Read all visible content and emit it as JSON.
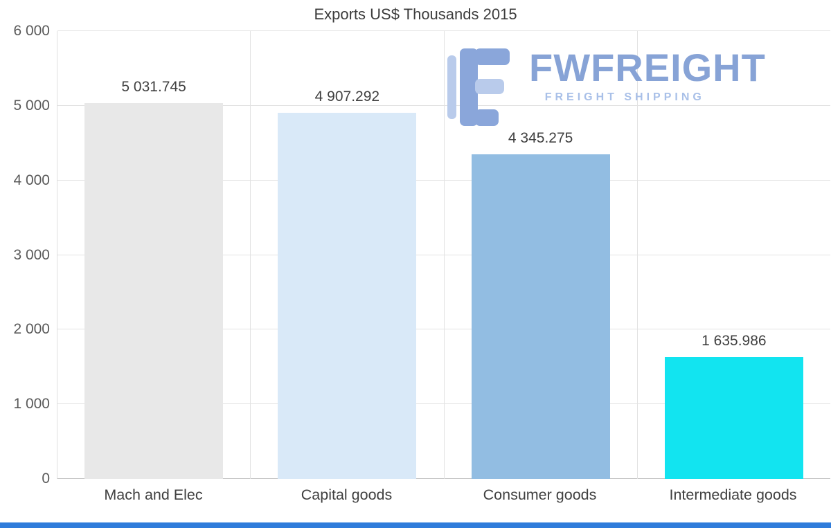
{
  "title": "Exports US$ Thousands 2015",
  "watermark": {
    "brand": "FWFREIGHT",
    "subtitle": "FREIGHT SHIPPING",
    "brand_color": "#87a3d6",
    "subtitle_color": "#a9c0e8",
    "logo_dark": "#8aa6da",
    "logo_light": "#b9cbeb"
  },
  "footer": {
    "color": "#2f7cdb"
  },
  "chart_data": {
    "type": "bar",
    "title": "Exports US$ Thousands 2015",
    "categories": [
      "Mach and Elec",
      "Capital goods",
      "Consumer goods",
      "Intermediate goods"
    ],
    "values": [
      5031.745,
      4907.292,
      4345.275,
      1635.986
    ],
    "value_labels": [
      "5 031.745",
      "4 907.292",
      "4 345.275",
      "1 635.986"
    ],
    "bar_colors": [
      "#e8e8e8",
      "#d9e9f8",
      "#92bde2",
      "#12e4f0"
    ],
    "xlabel": "",
    "ylabel": "",
    "ylim": [
      0,
      6000
    ],
    "ytick_labels": [
      "0",
      "1 000",
      "2 000",
      "3 000",
      "4 000",
      "5 000",
      "6 000"
    ],
    "grid": true,
    "legend": false
  }
}
